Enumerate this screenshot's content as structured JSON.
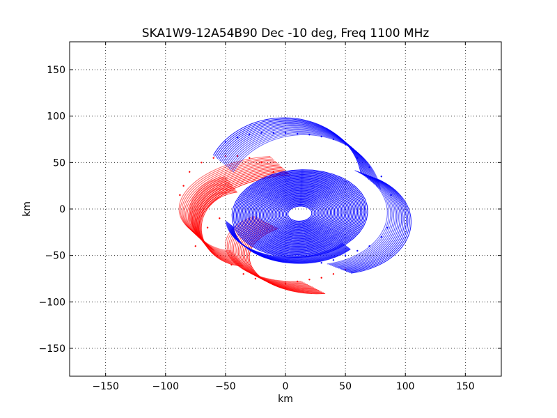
{
  "chart_data": {
    "type": "scatter",
    "title": "SKA1W9-12A54B90 Dec -10 deg, Freq 1100 MHz",
    "xlabel": "km",
    "ylabel": "km",
    "xlim": [
      -180,
      180
    ],
    "ylim": [
      -180,
      180
    ],
    "xticks": [
      -150,
      -100,
      -50,
      0,
      50,
      100,
      150
    ],
    "yticks": [
      -150,
      -100,
      -50,
      0,
      50,
      100,
      150
    ],
    "xtick_labels": [
      "−150",
      "−100",
      "−50",
      "0",
      "50",
      "100",
      "150"
    ],
    "ytick_labels": [
      "−150",
      "−100",
      "−50",
      "0",
      "50",
      "100",
      "150"
    ],
    "grid": true,
    "series": [
      {
        "color": "#ff0000",
        "note_shape": "uv-tracks",
        "x": [
          -88,
          -85,
          -80,
          -70,
          -60,
          -50,
          -40,
          -30,
          -20,
          -10,
          0,
          10,
          20,
          30,
          40,
          50,
          -75,
          -65,
          -55,
          -45,
          -35,
          -25
        ],
        "y": [
          15,
          25,
          40,
          50,
          55,
          57,
          57,
          55,
          50,
          40,
          -80,
          -78,
          -76,
          -74,
          -70,
          -65,
          -40,
          -20,
          -10,
          -60,
          -70,
          -75
        ]
      },
      {
        "color": "#0000ff",
        "note_shape": "uv-tracks",
        "x": [
          -50,
          -40,
          -30,
          -20,
          -10,
          0,
          10,
          20,
          30,
          40,
          50,
          60,
          70,
          80,
          88,
          85,
          80,
          70,
          60,
          50,
          40,
          30
        ],
        "y": [
          72,
          77,
          80,
          82,
          82,
          82,
          81,
          80,
          78,
          75,
          70,
          55,
          45,
          35,
          15,
          -20,
          -30,
          -40,
          -45,
          -50,
          -55,
          -58
        ]
      }
    ]
  }
}
